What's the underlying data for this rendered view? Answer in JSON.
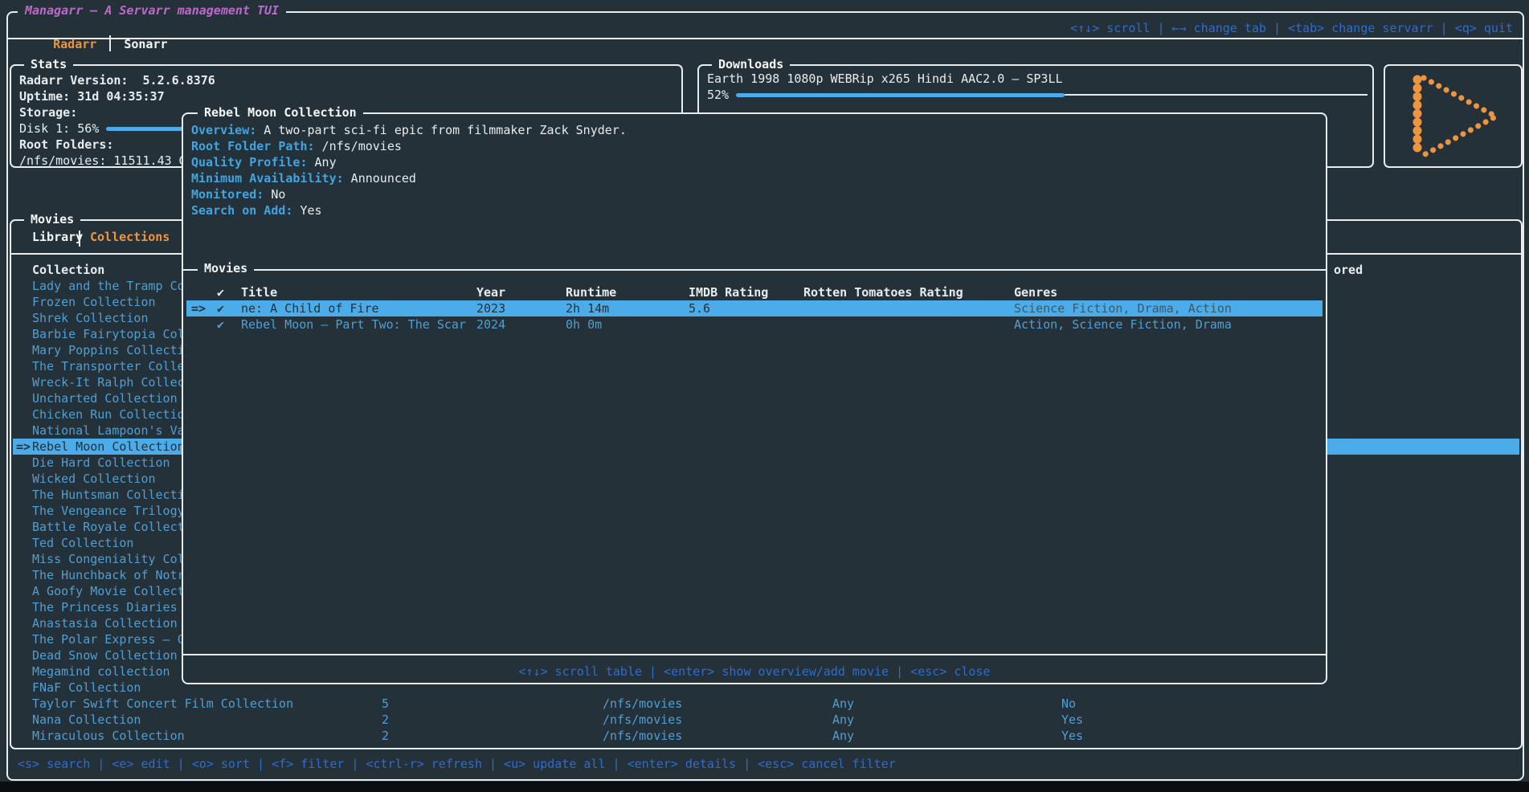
{
  "app": {
    "title": "Managarr – A Servarr management TUI",
    "tabs": [
      {
        "label": "Radarr",
        "active": true
      },
      {
        "label": "Sonarr",
        "active": false
      }
    ],
    "help": "<↑↓> scroll | ←→ change tab | <tab> change servarr | <q> quit"
  },
  "stats": {
    "title": "Stats",
    "version_label": "Radarr Version:",
    "version_value": "5.2.6.8376",
    "uptime_label": "Uptime:",
    "uptime_value": "31d 04:35:37",
    "storage_label": "Storage:",
    "disk_label": "Disk 1:",
    "disk_percent": "56%",
    "disk_percent_value": 56,
    "root_folders_label": "Root Folders:",
    "root_folder_value": "/nfs/movies: 11511.43 GB"
  },
  "downloads": {
    "title": "Downloads",
    "current": {
      "name": "Earth 1998 1080p WEBRip x265 Hindi AAC2.0 – SP3LL",
      "percent": "52%",
      "percent_value": 52
    }
  },
  "logo": {
    "icon": "managarr-play-logo",
    "color": "#ec9440"
  },
  "movies": {
    "title": "Movies",
    "tabs": [
      {
        "label": "Library",
        "active": false
      },
      {
        "label": "Collections",
        "active": true
      }
    ],
    "column_header": "Collection",
    "monitored_header_fragment": "ored",
    "selection_arrow": "=>",
    "selected_index": 10,
    "collections": [
      "Lady and the Tramp Co",
      "Frozen Collection",
      "Shrek Collection",
      "Barbie Fairytopia Col",
      "Mary Poppins Collecti",
      "The Transporter Colle",
      "Wreck-It Ralph Collec",
      "Uncharted Collection",
      "Chicken Run Collectio",
      "National Lampoon's Va",
      "Rebel Moon Collection",
      "Die Hard Collection",
      "Wicked Collection",
      "The Huntsman Collecti",
      "The Vengeance Trilogy",
      "Battle Royale Collect",
      "Ted Collection",
      "Miss Congeniality Col",
      "The Hunchback of Notr",
      "A Goofy Movie Collect",
      "The Princess Diaries",
      "Anastasia Collection",
      "The Polar Express – C",
      "Dead Snow Collection",
      "Megamind collection",
      "FNaF Collection"
    ],
    "visible_rows": [
      {
        "collection": "Taylor Swift Concert Film Collection",
        "movies": "5",
        "root_folder_path": "/nfs/movies",
        "quality_profile": "Any",
        "monitored": "No"
      },
      {
        "collection": "Nana Collection",
        "movies": "2",
        "root_folder_path": "/nfs/movies",
        "quality_profile": "Any",
        "monitored": "Yes"
      },
      {
        "collection": "Miraculous Collection",
        "movies": "2",
        "root_folder_path": "/nfs/movies",
        "quality_profile": "Any",
        "monitored": "Yes"
      }
    ],
    "keybinds": "<s> search | <e> edit | <o> sort | <f> filter | <ctrl-r> refresh | <u> update all | <enter> details | <esc> cancel filter"
  },
  "modal": {
    "title": "Rebel Moon Collection",
    "fields": [
      {
        "label": "Overview:",
        "value": "A two-part sci-fi epic from filmmaker Zack Snyder."
      },
      {
        "label": "Root Folder Path:",
        "value": "/nfs/movies"
      },
      {
        "label": "Quality Profile:",
        "value": "Any"
      },
      {
        "label": "Minimum Availability:",
        "value": "Announced"
      },
      {
        "label": "Monitored:",
        "value": "No"
      },
      {
        "label": "Search on Add:",
        "value": "Yes"
      }
    ],
    "table": {
      "title": "Movies",
      "selection_arrow": "=>",
      "columns": [
        "✔",
        "Title",
        "Year",
        "Runtime",
        "IMDB Rating",
        "Rotten Tomatoes Rating",
        "Genres"
      ],
      "rows": [
        {
          "selected": true,
          "monitored": "✔",
          "title": "ne: A Child of Fire",
          "year": "2023",
          "runtime": "2h 14m",
          "imdb_rating": "5.6",
          "rotten_tomatoes_rating": "",
          "genres": "Science Fiction, Drama, Action"
        },
        {
          "selected": false,
          "monitored": "✔",
          "title": "Rebel Moon – Part Two: The Scar",
          "year": "2024",
          "runtime": "0h 0m",
          "imdb_rating": "",
          "rotten_tomatoes_rating": "",
          "genres": "Action, Science Fiction, Drama"
        }
      ],
      "keybinds": "<↑↓> scroll table | <enter> show overview/add movie | <esc> close"
    }
  },
  "colors": {
    "background": "#253139",
    "border": "#e7ecee",
    "accent_orange": "#ec9440",
    "accent_purple": "#bd68cd",
    "keybind_blue": "#2e6cce",
    "list_blue": "#4f9fd5",
    "label_blue": "#3fa5e3",
    "highlight": "#4cace9",
    "highlight_text": "#22313a"
  }
}
